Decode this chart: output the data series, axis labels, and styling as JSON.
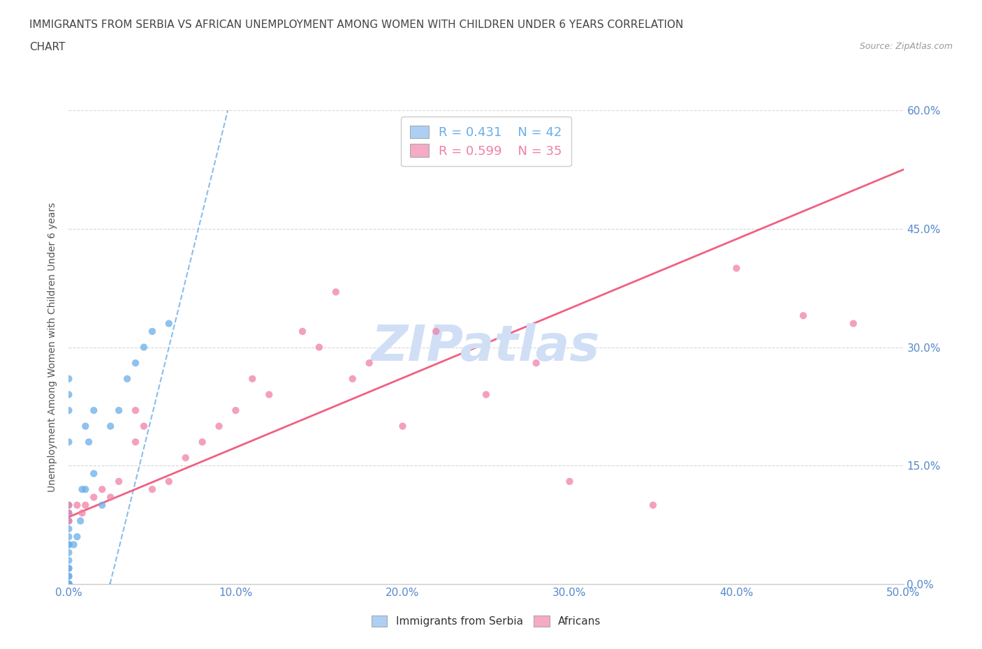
{
  "title_line1": "IMMIGRANTS FROM SERBIA VS AFRICAN UNEMPLOYMENT AMONG WOMEN WITH CHILDREN UNDER 6 YEARS CORRELATION",
  "title_line2": "CHART",
  "source": "Source: ZipAtlas.com",
  "xlim": [
    0,
    0.5
  ],
  "ylim": [
    0,
    0.6
  ],
  "ylabel": "Unemployment Among Women with Children Under 6 years",
  "legend_serbia": {
    "R": 0.431,
    "N": 42,
    "color": "#aecff5"
  },
  "legend_africans": {
    "R": 0.599,
    "N": 35,
    "color": "#f5aac5"
  },
  "serbia_scatter_color": "#6aaee8",
  "africans_scatter_color": "#f080a8",
  "serbia_line_color": "#6aaee8",
  "africans_line_color": "#f06080",
  "serbia_points_x": [
    0.0,
    0.0,
    0.0,
    0.0,
    0.0,
    0.0,
    0.0,
    0.0,
    0.0,
    0.0,
    0.0,
    0.0,
    0.0,
    0.0,
    0.0,
    0.0,
    0.0,
    0.0,
    0.0,
    0.0,
    0.0,
    0.0,
    0.0,
    0.0,
    0.0,
    0.003,
    0.005,
    0.007,
    0.008,
    0.01,
    0.01,
    0.012,
    0.015,
    0.015,
    0.02,
    0.025,
    0.03,
    0.035,
    0.04,
    0.045,
    0.05,
    0.06
  ],
  "serbia_points_y": [
    0.0,
    0.0,
    0.0,
    0.0,
    0.0,
    0.0,
    0.0,
    0.0,
    0.01,
    0.01,
    0.02,
    0.02,
    0.03,
    0.04,
    0.05,
    0.05,
    0.06,
    0.07,
    0.08,
    0.09,
    0.1,
    0.18,
    0.22,
    0.24,
    0.26,
    0.05,
    0.06,
    0.08,
    0.12,
    0.12,
    0.2,
    0.18,
    0.14,
    0.22,
    0.1,
    0.2,
    0.22,
    0.26,
    0.28,
    0.3,
    0.32,
    0.33
  ],
  "africans_points_x": [
    0.0,
    0.0,
    0.0,
    0.005,
    0.008,
    0.01,
    0.015,
    0.02,
    0.025,
    0.03,
    0.04,
    0.04,
    0.045,
    0.05,
    0.06,
    0.07,
    0.08,
    0.09,
    0.1,
    0.11,
    0.12,
    0.14,
    0.15,
    0.16,
    0.17,
    0.18,
    0.2,
    0.22,
    0.25,
    0.28,
    0.3,
    0.35,
    0.4,
    0.44,
    0.47
  ],
  "africans_points_y": [
    0.08,
    0.09,
    0.1,
    0.1,
    0.09,
    0.1,
    0.11,
    0.12,
    0.11,
    0.13,
    0.18,
    0.22,
    0.2,
    0.12,
    0.13,
    0.16,
    0.18,
    0.2,
    0.22,
    0.26,
    0.24,
    0.32,
    0.3,
    0.37,
    0.26,
    0.28,
    0.2,
    0.32,
    0.24,
    0.28,
    0.13,
    0.1,
    0.4,
    0.34,
    0.33
  ],
  "background_color": "#ffffff",
  "grid_color": "#cccccc",
  "axis_color": "#cccccc",
  "tick_label_color": "#5588cc",
  "title_color": "#444444",
  "watermark_color": "#d0dff5",
  "watermark_fontsize": 52,
  "serbia_line_slope": 8.5,
  "serbia_line_intercept": -0.21,
  "africans_line_slope": 0.88,
  "africans_line_intercept": 0.085
}
